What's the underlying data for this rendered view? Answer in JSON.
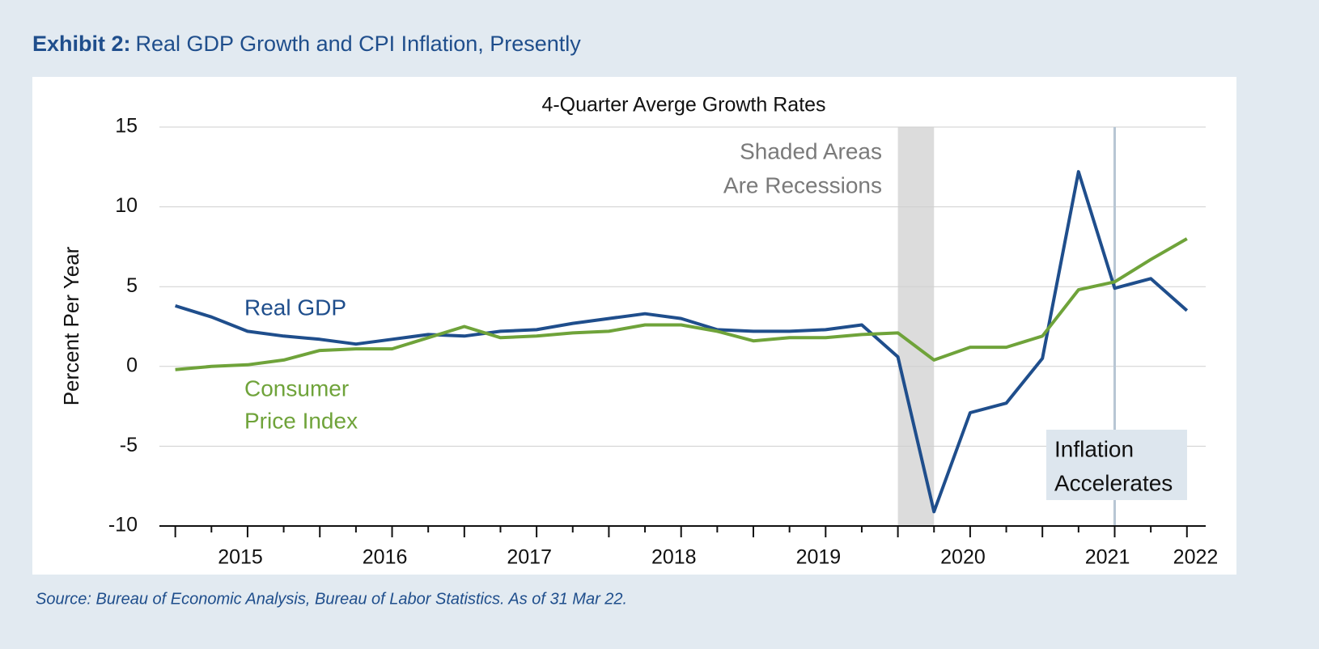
{
  "chart_data": {
    "type": "line",
    "title_label": "Exhibit 2:",
    "title": "Real GDP Growth and CPI Inflation, Presently",
    "subtitle": "4-Quarter Averge Growth Rates",
    "y_label": "Percent Per Year",
    "source": "Source: Bureau of Economic Analysis, Bureau of Labor Statistics. As of 31 Mar 22.",
    "x": [
      2015.0,
      2015.25,
      2015.5,
      2015.75,
      2016.0,
      2016.25,
      2016.5,
      2016.75,
      2017.0,
      2017.25,
      2017.5,
      2017.75,
      2018.0,
      2018.25,
      2018.5,
      2018.75,
      2019.0,
      2019.25,
      2019.5,
      2019.75,
      2020.0,
      2020.25,
      2020.5,
      2020.75,
      2021.0,
      2021.25,
      2021.5,
      2021.75,
      2022.0
    ],
    "series": [
      {
        "name": "Real GDP",
        "color": "#1f4e8c",
        "values": [
          3.8,
          3.1,
          2.2,
          1.9,
          1.7,
          1.4,
          1.7,
          2.0,
          1.9,
          2.2,
          2.3,
          2.7,
          3.0,
          3.3,
          3.0,
          2.3,
          2.2,
          2.2,
          2.3,
          2.6,
          0.6,
          -9.1,
          -2.9,
          -2.3,
          0.5,
          12.2,
          4.9,
          5.5,
          3.5
        ]
      },
      {
        "name": "Consumer Price Index",
        "color": "#6fa33a",
        "values": [
          -0.2,
          0.0,
          0.1,
          0.4,
          1.0,
          1.1,
          1.1,
          1.8,
          2.5,
          1.8,
          1.9,
          2.1,
          2.2,
          2.6,
          2.6,
          2.2,
          1.6,
          1.8,
          1.8,
          2.0,
          2.1,
          0.4,
          1.2,
          1.2,
          1.9,
          4.8,
          5.3,
          6.7,
          8.0
        ]
      }
    ],
    "legend_labels": [
      [
        "Real GDP"
      ],
      [
        "Consumer",
        "Price Index"
      ]
    ],
    "recession": {
      "start": 2020.0,
      "end": 2020.25,
      "color": "#dcdcdc",
      "note": [
        "Shaded Areas",
        "Are Recessions"
      ]
    },
    "marker_line": {
      "x": 2021.5,
      "note": [
        "Inflation",
        "Accelerates"
      ]
    },
    "xlim": [
      2014.89,
      2022.13
    ],
    "xticks": [
      {
        "value": 2015.45,
        "label": "2015"
      },
      {
        "value": 2016.45,
        "label": "2016"
      },
      {
        "value": 2017.45,
        "label": "2017"
      },
      {
        "value": 2018.45,
        "label": "2018"
      },
      {
        "value": 2019.45,
        "label": "2019"
      },
      {
        "value": 2020.45,
        "label": "2020"
      },
      {
        "value": 2021.45,
        "label": "2021"
      },
      {
        "value": 2022.06,
        "label": "2022"
      }
    ],
    "ylim": [
      -10,
      15
    ],
    "yticks": [
      -10,
      -5,
      0,
      5,
      10,
      15
    ],
    "grid": true
  }
}
